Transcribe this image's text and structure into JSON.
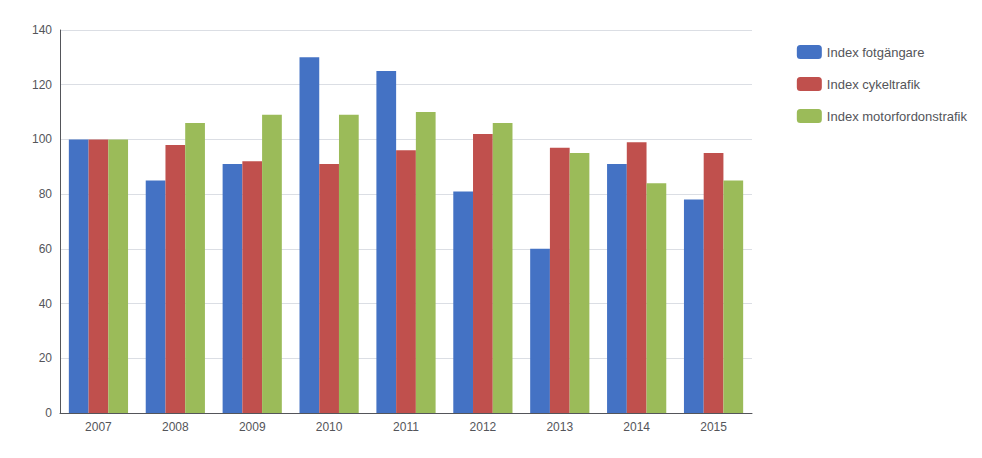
{
  "chart_data": {
    "type": "bar",
    "categories": [
      "2007",
      "2008",
      "2009",
      "2010",
      "2011",
      "2012",
      "2013",
      "2014",
      "2015"
    ],
    "series": [
      {
        "name": "Index fotgängare",
        "color": "#4472C4",
        "values": [
          100,
          85,
          91,
          130,
          125,
          81,
          60,
          91,
          78
        ]
      },
      {
        "name": "Index cykeltrafik",
        "color": "#C0504D",
        "values": [
          100,
          98,
          92,
          91,
          96,
          102,
          97,
          99,
          95
        ]
      },
      {
        "name": "Index motorfordonstrafik",
        "color": "#9BBB59",
        "values": [
          100,
          106,
          109,
          109,
          110,
          106,
          95,
          84,
          85
        ]
      }
    ],
    "ylim": [
      0,
      140
    ],
    "yticks": [
      0,
      20,
      40,
      60,
      80,
      100,
      120,
      140
    ],
    "grid": true,
    "legend": "right"
  }
}
